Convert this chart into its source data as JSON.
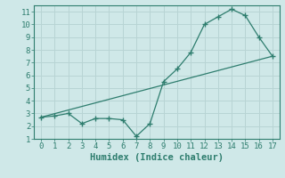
{
  "xlabel": "Humidex (Indice chaleur)",
  "xlim": [
    -0.5,
    17.5
  ],
  "ylim": [
    1,
    11.5
  ],
  "yticks": [
    1,
    2,
    3,
    4,
    5,
    6,
    7,
    8,
    9,
    10,
    11
  ],
  "xticks": [
    0,
    1,
    2,
    3,
    4,
    5,
    6,
    7,
    8,
    9,
    10,
    11,
    12,
    13,
    14,
    15,
    16,
    17
  ],
  "bg_color": "#cfe8e8",
  "grid_color": "#b8d4d4",
  "line_color": "#2e7d6e",
  "line1_x": [
    0,
    1,
    2,
    3,
    4,
    5,
    6,
    7,
    8,
    9,
    10,
    11,
    12,
    13,
    14,
    15,
    16,
    17
  ],
  "line1_y": [
    2.7,
    2.8,
    3.0,
    2.2,
    2.6,
    2.6,
    2.5,
    1.2,
    2.2,
    5.5,
    6.5,
    7.8,
    10.0,
    10.6,
    11.2,
    10.7,
    9.0,
    7.5
  ],
  "line2_x": [
    0,
    17
  ],
  "line2_y": [
    2.7,
    7.5
  ],
  "tick_fontsize": 6.5,
  "xlabel_fontsize": 7.5
}
